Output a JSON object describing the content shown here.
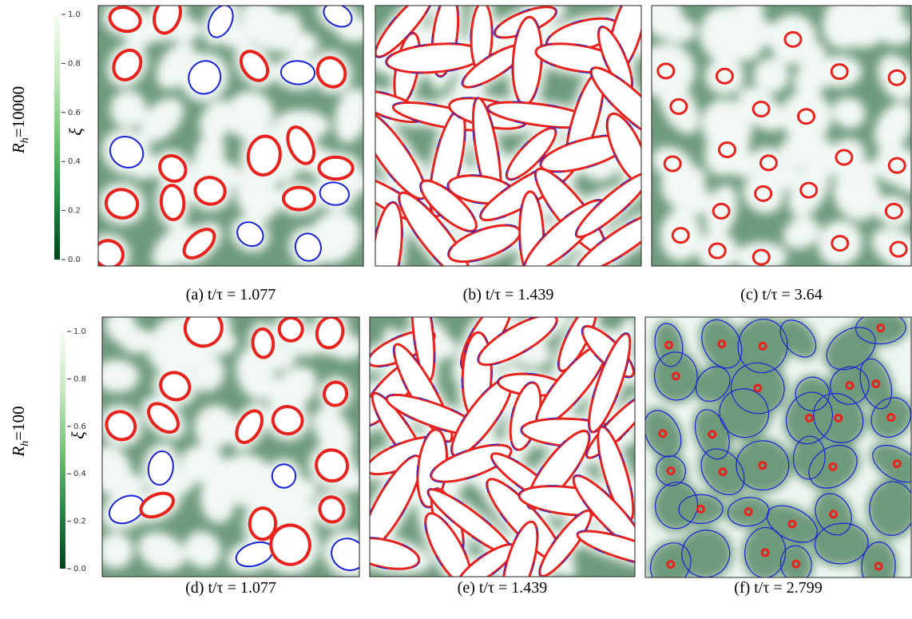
{
  "rows": [
    {
      "label": {
        "symbol": "R",
        "subscript": "h",
        "value": "=10000"
      },
      "colorbar": {
        "label": "ξ",
        "lim": [
          0,
          1.0
        ],
        "ticks": [
          {
            "value": 0,
            "label": "0.0"
          },
          {
            "value": 0.2,
            "label": "0.2"
          },
          {
            "value": 0.4,
            "label": "0.4"
          },
          {
            "value": 0.6,
            "label": "0.6"
          },
          {
            "value": 0.8,
            "label": "0.8"
          },
          {
            "value": 1.0,
            "label": "1.0"
          }
        ]
      },
      "panels": [
        {
          "caption": "(a) t/τ = 1.077"
        },
        {
          "caption": "(b) t/τ = 1.439"
        },
        {
          "caption": "(c) t/τ = 3.64"
        }
      ]
    },
    {
      "label": {
        "symbol": "R",
        "subscript": "h",
        "value": "=100"
      },
      "colorbar": {
        "label": "ξ",
        "lim": [
          0,
          1.0
        ],
        "ticks": [
          {
            "value": 0,
            "label": "0.0"
          },
          {
            "value": 0.2,
            "label": "0.2"
          },
          {
            "value": 0.4,
            "label": "0.4"
          },
          {
            "value": 0.6,
            "label": "0.6"
          },
          {
            "value": 0.8,
            "label": "0.8"
          },
          {
            "value": 1.0,
            "label": "1.0"
          }
        ]
      },
      "panels": [
        {
          "caption": "(d) t/τ = 1.077"
        },
        {
          "caption": "(e) t/τ = 1.439"
        },
        {
          "caption": "(f) t/τ = 2.799"
        }
      ]
    }
  ]
}
